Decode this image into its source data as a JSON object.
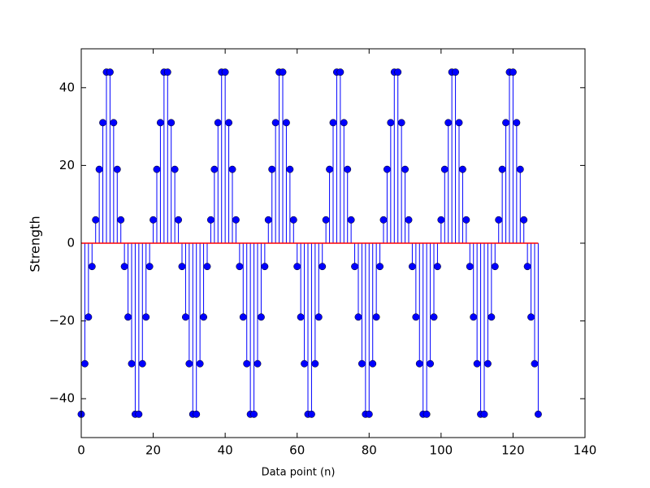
{
  "chart_data": {
    "type": "stem",
    "xlabel": "Data point (n)",
    "ylabel": "Strength",
    "x": [
      0,
      1,
      2,
      3,
      4,
      5,
      6,
      7,
      8,
      9,
      10,
      11,
      12,
      13,
      14,
      15,
      16,
      17,
      18,
      19,
      20,
      21,
      22,
      23,
      24,
      25,
      26,
      27,
      28,
      29,
      30,
      31,
      32,
      33,
      34,
      35,
      36,
      37,
      38,
      39,
      40,
      41,
      42,
      43,
      44,
      45,
      46,
      47,
      48,
      49,
      50,
      51,
      52,
      53,
      54,
      55,
      56,
      57,
      58,
      59,
      60,
      61,
      62,
      63,
      64,
      65,
      66,
      67,
      68,
      69,
      70,
      71,
      72,
      73,
      74,
      75,
      76,
      77,
      78,
      79,
      80,
      81,
      82,
      83,
      84,
      85,
      86,
      87,
      88,
      89,
      90,
      91,
      92,
      93,
      94,
      95,
      96,
      97,
      98,
      99,
      100,
      101,
      102,
      103,
      104,
      105,
      106,
      107,
      108,
      109,
      110,
      111,
      112,
      113,
      114,
      115,
      116,
      117,
      118,
      119,
      120,
      121,
      122,
      123,
      124,
      125,
      126,
      127
    ],
    "values": [
      -44,
      -31,
      -19,
      -6,
      6,
      19,
      31,
      44,
      44,
      31,
      19,
      6,
      -6,
      -19,
      -31,
      -44,
      -44,
      -31,
      -19,
      -6,
      6,
      19,
      31,
      44,
      44,
      31,
      19,
      6,
      -6,
      -19,
      -31,
      -44,
      -44,
      -31,
      -19,
      -6,
      6,
      19,
      31,
      44,
      44,
      31,
      19,
      6,
      -6,
      -19,
      -31,
      -44,
      -44,
      -31,
      -19,
      -6,
      6,
      19,
      31,
      44,
      44,
      31,
      19,
      6,
      -6,
      -19,
      -31,
      -44,
      -44,
      -31,
      -19,
      -6,
      6,
      19,
      31,
      44,
      44,
      31,
      19,
      6,
      -6,
      -19,
      -31,
      -44,
      -44,
      -31,
      -19,
      -6,
      6,
      19,
      31,
      44,
      44,
      31,
      19,
      6,
      -6,
      -19,
      -31,
      -44,
      -44,
      -31,
      -19,
      -6,
      6,
      19,
      31,
      44,
      44,
      31,
      19,
      6,
      -6,
      -19,
      -31,
      -44,
      -44,
      -31,
      -19,
      -6,
      6,
      19,
      31,
      44,
      44,
      31,
      19,
      6,
      -6,
      -19,
      -31,
      -44
    ],
    "color": "#0000ff",
    "baseline_color": "#ff0000",
    "xlim": [
      0,
      140
    ],
    "ylim": [
      -50,
      50
    ],
    "xticks": [
      0,
      20,
      40,
      60,
      80,
      100,
      120,
      140
    ],
    "yticks": [
      {
        "value": -40,
        "label": "−40"
      },
      {
        "value": -20,
        "label": "−20"
      },
      0,
      20,
      40
    ]
  }
}
